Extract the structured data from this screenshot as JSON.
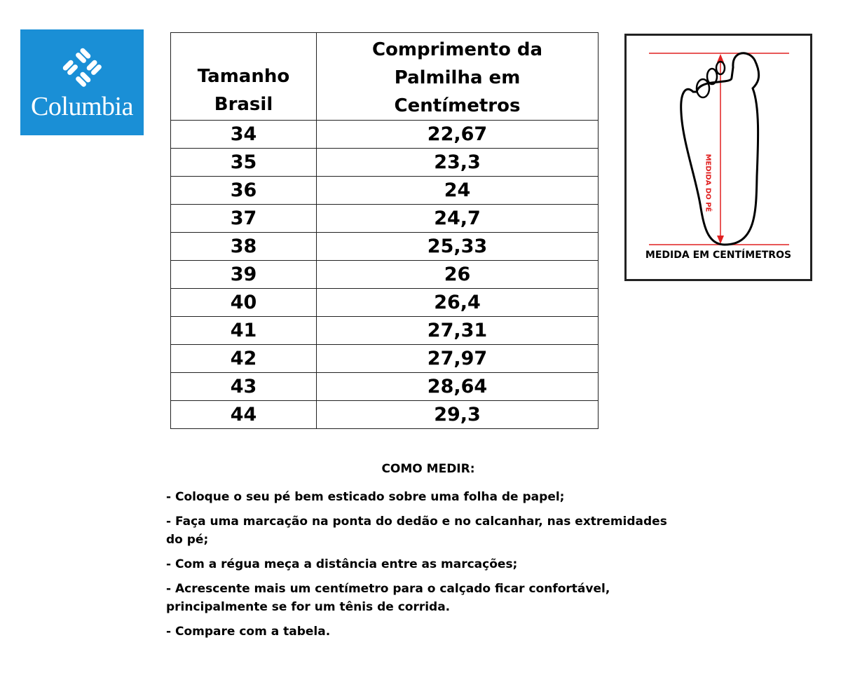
{
  "logo": {
    "text": "Columbia",
    "color": "#1a8fd6"
  },
  "table": {
    "headers": [
      "Tamanho Brasil",
      "Comprimento da Palmilha em Centímetros"
    ],
    "rows": [
      [
        "34",
        "22,67"
      ],
      [
        "35",
        "23,3"
      ],
      [
        "36",
        "24"
      ],
      [
        "37",
        "24,7"
      ],
      [
        "38",
        "25,33"
      ],
      [
        "39",
        "26"
      ],
      [
        "40",
        "26,4"
      ],
      [
        "41",
        "27,31"
      ],
      [
        "42",
        "27,97"
      ],
      [
        "43",
        "28,64"
      ],
      [
        "44",
        "29,3"
      ]
    ]
  },
  "diagram": {
    "vertical_label": "MEDIDA DO PÉ",
    "caption": "MEDIDA EM CENTÍMETROS",
    "line_color": "#e02020"
  },
  "instructions": {
    "title": "COMO MEDIR:",
    "steps": [
      "- Coloque o seu pé bem esticado sobre uma folha de papel;",
      "- Faça uma marcação na ponta do dedão e no calcanhar, nas extremidades do pé;",
      "- Com a régua meça a distância entre as marcações;",
      "- Acrescente mais um centímetro para o calçado ficar confortável, principalmente se for um tênis de corrida.",
      "- Compare com a tabela."
    ]
  }
}
